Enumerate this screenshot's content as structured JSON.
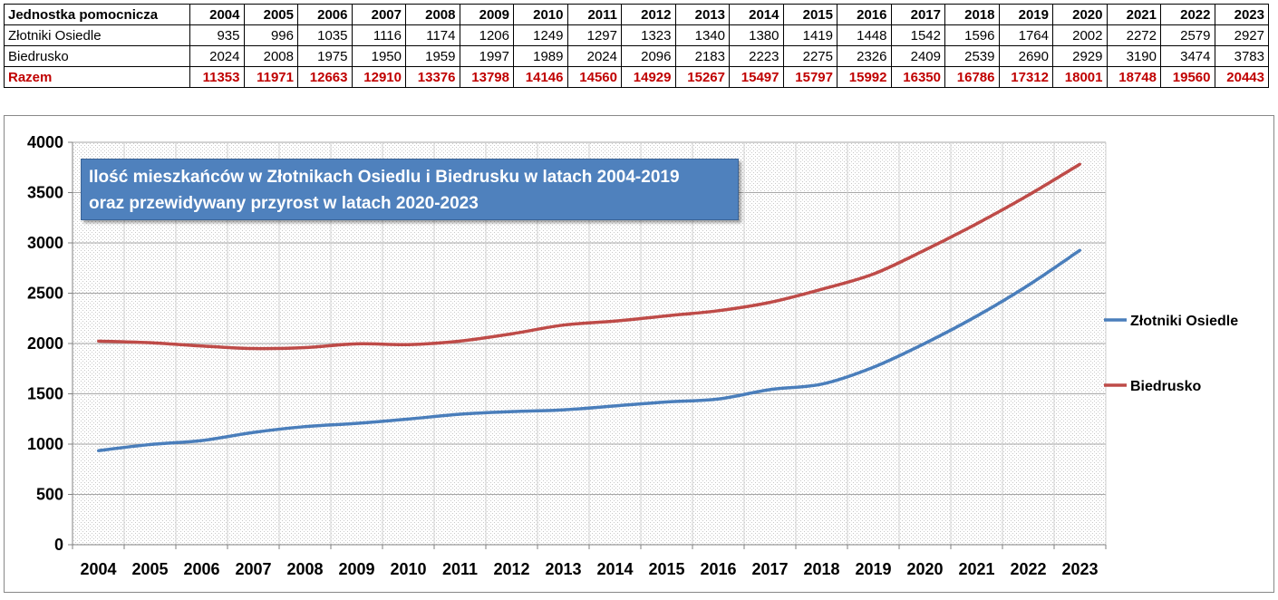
{
  "table": {
    "header_label": "Jednostka pomocnicza",
    "years": [
      "2004",
      "2005",
      "2006",
      "2007",
      "2008",
      "2009",
      "2010",
      "2011",
      "2012",
      "2013",
      "2014",
      "2015",
      "2016",
      "2017",
      "2018",
      "2019",
      "2020",
      "2021",
      "2022",
      "2023"
    ],
    "rows": [
      {
        "label": "Złotniki Osiedle",
        "values": [
          "935",
          "996",
          "1035",
          "1116",
          "1174",
          "1206",
          "1249",
          "1297",
          "1323",
          "1340",
          "1380",
          "1419",
          "1448",
          "1542",
          "1596",
          "1764",
          "2002",
          "2272",
          "2579",
          "2927"
        ]
      },
      {
        "label": "Biedrusko",
        "values": [
          "2024",
          "2008",
          "1975",
          "1950",
          "1959",
          "1997",
          "1989",
          "2024",
          "2096",
          "2183",
          "2223",
          "2275",
          "2326",
          "2409",
          "2539",
          "2690",
          "2929",
          "3190",
          "3474",
          "3783"
        ]
      }
    ],
    "total": {
      "label": "Razem",
      "values": [
        "11353",
        "11971",
        "12663",
        "12910",
        "13376",
        "13798",
        "14146",
        "14560",
        "14929",
        "15267",
        "15497",
        "15797",
        "15992",
        "16350",
        "16786",
        "17312",
        "18001",
        "18748",
        "19560",
        "20443"
      ]
    }
  },
  "chart_data": {
    "type": "line",
    "title": "Ilość mieszkańców w Złotnikach Osiedlu i Biedrusku w latach 2004-2019",
    "subtitle": "oraz przewidywany przyrost w latach 2020-2023",
    "categories": [
      "2004",
      "2005",
      "2006",
      "2007",
      "2008",
      "2009",
      "2010",
      "2011",
      "2012",
      "2013",
      "2014",
      "2015",
      "2016",
      "2017",
      "2018",
      "2019",
      "2020",
      "2021",
      "2022",
      "2023"
    ],
    "series": [
      {
        "name": "Złotniki Osiedle",
        "color": "#4a7ebb",
        "values": [
          935,
          996,
          1035,
          1116,
          1174,
          1206,
          1249,
          1297,
          1323,
          1340,
          1380,
          1419,
          1448,
          1542,
          1596,
          1764,
          2002,
          2272,
          2579,
          2927
        ]
      },
      {
        "name": "Biedrusko",
        "color": "#be4b48",
        "values": [
          2024,
          2008,
          1975,
          1950,
          1959,
          1997,
          1989,
          2024,
          2096,
          2183,
          2223,
          2275,
          2326,
          2409,
          2539,
          2690,
          2929,
          3190,
          3474,
          3783
        ]
      }
    ],
    "ylim": [
      0,
      4000
    ],
    "yticks": [
      "0",
      "500",
      "1000",
      "1500",
      "2000",
      "2500",
      "3000",
      "3500",
      "4000"
    ],
    "grid": true,
    "legend": "right"
  }
}
